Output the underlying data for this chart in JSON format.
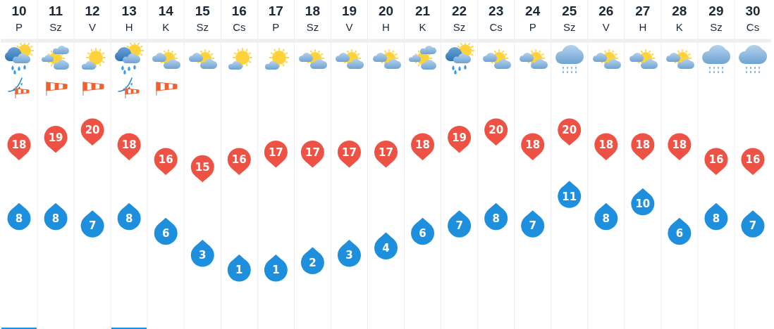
{
  "chart_data": {
    "type": "scatter",
    "categories": [
      "10\nP",
      "11\nSz",
      "12\nV",
      "13\nH",
      "14\nK",
      "15\nSz",
      "16\nCs",
      "17\nP",
      "18\nSz",
      "19\nV",
      "20\nH",
      "21\nK",
      "22\nSz",
      "23\nCs",
      "24\nP",
      "25\nSz",
      "26\nV",
      "27\nH",
      "28\nK",
      "29\nSz",
      "30\nCs"
    ],
    "series": [
      {
        "color": "#ee5244",
        "values": [
          18,
          19,
          20,
          18,
          16,
          15,
          16,
          17,
          17,
          17,
          17,
          18,
          19,
          20,
          18,
          20,
          18,
          18,
          18,
          16,
          16
        ]
      },
      {
        "color": "#1e8fdc",
        "values": [
          8,
          8,
          7,
          8,
          6,
          3,
          1,
          1,
          2,
          3,
          4,
          6,
          7,
          8,
          7,
          11,
          8,
          10,
          6,
          8,
          7
        ]
      }
    ],
    "tick_labels": "x",
    "grid": "x",
    "data_labels": true
  }
}
